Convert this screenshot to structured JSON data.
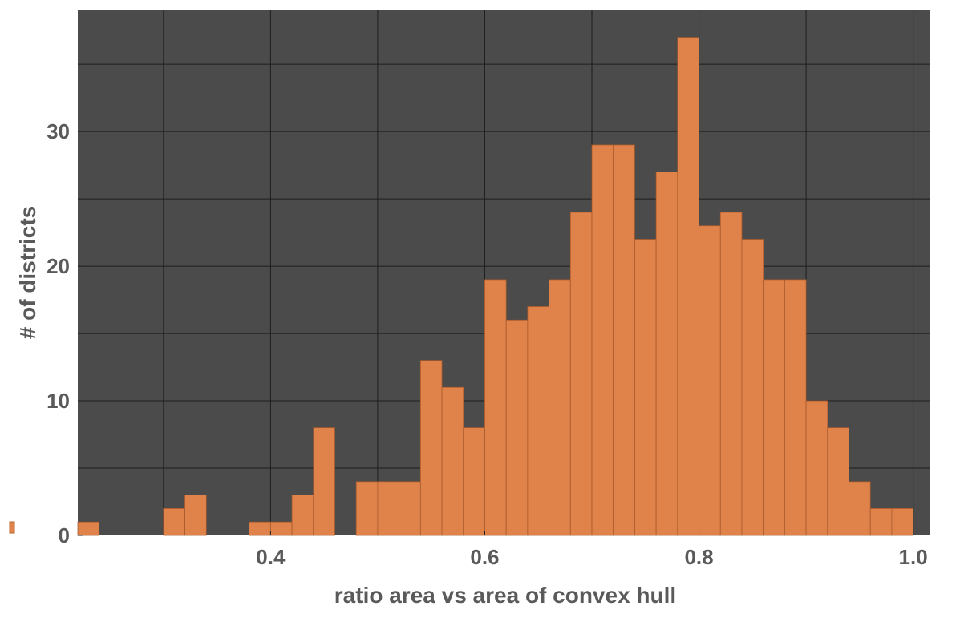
{
  "chart_data": {
    "type": "histogram",
    "xlabel": "ratio area vs area of convex hull",
    "ylabel": "# of districts",
    "bins": [
      0.22,
      0.24,
      0.26,
      0.28,
      0.3,
      0.32,
      0.34,
      0.36,
      0.38,
      0.4,
      0.42,
      0.44,
      0.46,
      0.48,
      0.5,
      0.52,
      0.54,
      0.56,
      0.58,
      0.6,
      0.62,
      0.64,
      0.66,
      0.68,
      0.7,
      0.72,
      0.74,
      0.76,
      0.78,
      0.8,
      0.82,
      0.84,
      0.86,
      0.88,
      0.9,
      0.92,
      0.94,
      0.96,
      0.98,
      1.0
    ],
    "counts": [
      1,
      0,
      0,
      0,
      2,
      3,
      0,
      0,
      1,
      1,
      3,
      8,
      0,
      4,
      4,
      4,
      13,
      11,
      8,
      19,
      16,
      17,
      19,
      24,
      29,
      29,
      22,
      27,
      37,
      23,
      24,
      22,
      19,
      19,
      10,
      8,
      4,
      2,
      2
    ],
    "color": "#e0834a",
    "xlim": [
      0.22,
      1.016
    ],
    "ylim": [
      0,
      39
    ],
    "xticks": [
      0.4,
      0.6,
      0.8,
      {
        "value": 1,
        "label": "1.0"
      }
    ],
    "yticks": [
      0,
      10,
      20,
      30
    ],
    "xgrid": [
      0.3,
      0.4,
      0.5,
      0.6,
      0.7,
      0.8,
      0.9,
      1
    ],
    "ygrid": [
      5,
      10,
      15,
      20,
      25,
      30,
      35
    ],
    "grid": true
  }
}
